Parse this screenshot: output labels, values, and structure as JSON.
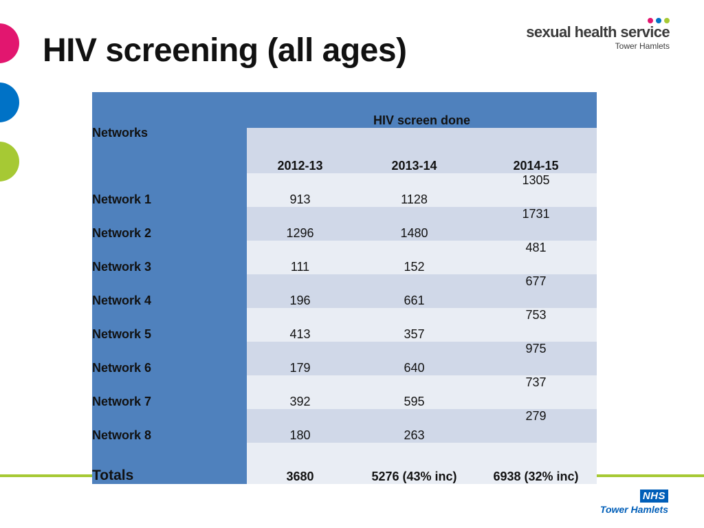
{
  "slide": {
    "title": "HIV screening (all ages)"
  },
  "logo": {
    "main": "sexual health service",
    "sub": "Tower Hamlets",
    "dot_colors": [
      "#e2166f",
      "#0072c6",
      "#a6c934"
    ]
  },
  "footer_logo": {
    "badge": "NHS",
    "sub": "Tower Hamlets"
  },
  "colors": {
    "header_blue": "#4f81bd",
    "row_light": "#e9edf4",
    "row_dark": "#d0d8e8",
    "accent_pink": "#e2166f",
    "accent_blue": "#0072c6",
    "accent_green": "#a6c934"
  },
  "table": {
    "corner_label": "Networks",
    "group_header": "HIV screen done",
    "years": [
      "2012-13",
      "2013-14",
      "2014-15"
    ],
    "rows": [
      {
        "network": "Network 1",
        "values": [
          "913",
          "1128",
          "1305"
        ]
      },
      {
        "network": "Network 2",
        "values": [
          "1296",
          "1480",
          "1731"
        ]
      },
      {
        "network": "Network 3",
        "values": [
          "111",
          "152",
          "481"
        ]
      },
      {
        "network": "Network 4",
        "values": [
          "196",
          "661",
          "677"
        ]
      },
      {
        "network": "Network 5",
        "values": [
          "413",
          "357",
          "753"
        ]
      },
      {
        "network": "Network 6",
        "values": [
          "179",
          "640",
          "975"
        ]
      },
      {
        "network": "Network 7",
        "values": [
          "392",
          "595",
          "737"
        ]
      },
      {
        "network": "Network 8",
        "values": [
          "180",
          "263",
          "279"
        ]
      }
    ],
    "totals": {
      "label": "Totals",
      "values": [
        "3680",
        "5276 (43% inc)",
        "6938 (32% inc)"
      ]
    }
  }
}
